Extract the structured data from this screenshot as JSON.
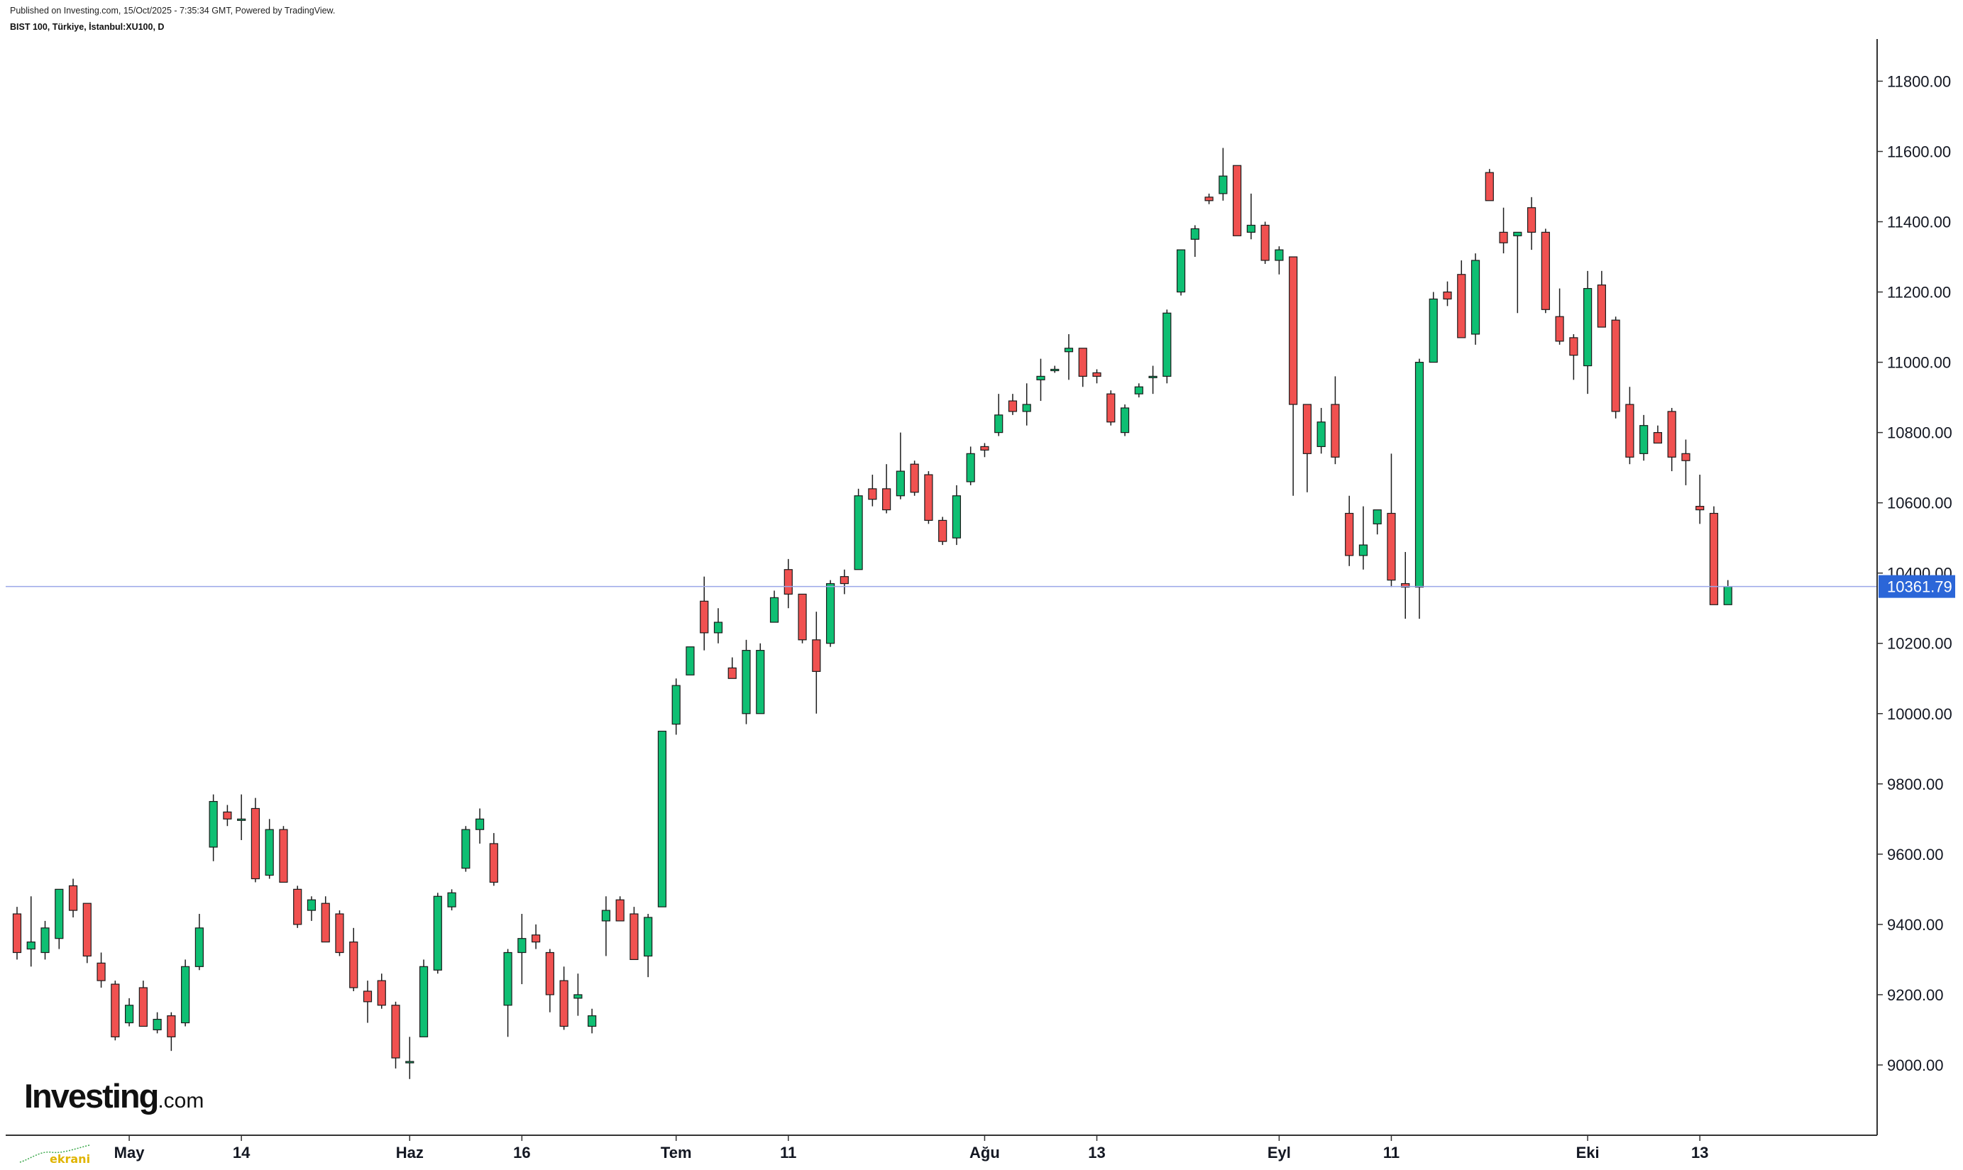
{
  "header": {
    "published": "Published on Investing.com, 15/Oct/2025 - 7:35:34 GMT, Powered by TradingView.",
    "symbol": "BIST 100, Türkiye, İstanbul:XU100, D"
  },
  "logo": {
    "brand": "Investing",
    "suffix": ".com"
  },
  "watermark": {
    "text": "ekrani"
  },
  "colors": {
    "up": "#0fbf73",
    "down": "#f05150",
    "outline": "#1b1b1b",
    "last_price_badge": "#2b66d8",
    "last_price_line": "#9aa6e8",
    "axis": "#333333"
  },
  "chart_data": {
    "type": "candlestick",
    "y_axis": {
      "min": 8800,
      "max": 11920,
      "position": "right",
      "ticks": [
        "9000.00",
        "9200.00",
        "9400.00",
        "9600.00",
        "9800.00",
        "10000.00",
        "10200.00",
        "10400.00",
        "10600.00",
        "10800.00",
        "11000.00",
        "11200.00",
        "11400.00",
        "11600.00",
        "11800.00"
      ]
    },
    "x_axis": {
      "labels": [
        {
          "text": "May",
          "index": 8
        },
        {
          "text": "14",
          "index": 16
        },
        {
          "text": "Haz",
          "index": 28
        },
        {
          "text": "16",
          "index": 36
        },
        {
          "text": "Tem",
          "index": 47
        },
        {
          "text": "11",
          "index": 55
        },
        {
          "text": "Ağu",
          "index": 69
        },
        {
          "text": "13",
          "index": 77
        },
        {
          "text": "Eyl",
          "index": 90
        },
        {
          "text": "11",
          "index": 98
        },
        {
          "text": "Eki",
          "index": 112
        },
        {
          "text": "13",
          "index": 120
        }
      ]
    },
    "last_price": 10361.79,
    "last_price_label": "10361.79",
    "candles": [
      [
        9430,
        9450,
        9300,
        9320
      ],
      [
        9330,
        9480,
        9280,
        9350
      ],
      [
        9320,
        9410,
        9300,
        9390
      ],
      [
        9360,
        9500,
        9330,
        9500
      ],
      [
        9510,
        9530,
        9420,
        9440
      ],
      [
        9460,
        9460,
        9290,
        9310
      ],
      [
        9290,
        9320,
        9220,
        9240
      ],
      [
        9230,
        9240,
        9070,
        9080
      ],
      [
        9120,
        9190,
        9110,
        9170
      ],
      [
        9220,
        9240,
        9110,
        9110
      ],
      [
        9100,
        9150,
        9090,
        9130
      ],
      [
        9140,
        9150,
        9040,
        9080
      ],
      [
        9120,
        9300,
        9110,
        9280
      ],
      [
        9280,
        9430,
        9270,
        9390
      ],
      [
        9620,
        9770,
        9580,
        9750
      ],
      [
        9720,
        9740,
        9680,
        9700
      ],
      [
        9700,
        9770,
        9640,
        9700
      ],
      [
        9730,
        9760,
        9520,
        9530
      ],
      [
        9540,
        9700,
        9530,
        9670
      ],
      [
        9670,
        9680,
        9520,
        9520
      ],
      [
        9500,
        9510,
        9390,
        9400
      ],
      [
        9440,
        9480,
        9410,
        9470
      ],
      [
        9460,
        9480,
        9350,
        9350
      ],
      [
        9430,
        9440,
        9310,
        9320
      ],
      [
        9350,
        9390,
        9210,
        9220
      ],
      [
        9210,
        9240,
        9120,
        9180
      ],
      [
        9240,
        9260,
        9160,
        9170
      ],
      [
        9170,
        9180,
        8990,
        9020
      ],
      [
        9010,
        9080,
        8960,
        9010
      ],
      [
        9080,
        9300,
        9080,
        9280
      ],
      [
        9270,
        9490,
        9260,
        9480
      ],
      [
        9450,
        9500,
        9440,
        9490
      ],
      [
        9560,
        9680,
        9550,
        9670
      ],
      [
        9670,
        9730,
        9630,
        9700
      ],
      [
        9630,
        9660,
        9510,
        9520
      ],
      [
        9170,
        9330,
        9080,
        9320
      ],
      [
        9320,
        9430,
        9230,
        9360
      ],
      [
        9370,
        9400,
        9330,
        9350
      ],
      [
        9320,
        9330,
        9150,
        9200
      ],
      [
        9240,
        9280,
        9100,
        9110
      ],
      [
        9190,
        9260,
        9140,
        9200
      ],
      [
        9110,
        9160,
        9090,
        9140
      ],
      [
        9410,
        9480,
        9310,
        9440
      ],
      [
        9470,
        9480,
        9410,
        9410
      ],
      [
        9430,
        9450,
        9300,
        9300
      ],
      [
        9310,
        9430,
        9250,
        9420
      ],
      [
        9450,
        9950,
        9450,
        9950
      ],
      [
        9970,
        10100,
        9940,
        10080
      ],
      [
        10110,
        10190,
        10110,
        10190
      ],
      [
        10320,
        10390,
        10180,
        10230
      ],
      [
        10230,
        10300,
        10200,
        10260
      ],
      [
        10130,
        10160,
        10100,
        10100
      ],
      [
        10000,
        10210,
        9970,
        10180
      ],
      [
        10000,
        10200,
        10000,
        10180
      ],
      [
        10260,
        10350,
        10260,
        10330
      ],
      [
        10410,
        10440,
        10300,
        10340
      ],
      [
        10340,
        10340,
        10200,
        10210
      ],
      [
        10210,
        10290,
        10000,
        10120
      ],
      [
        10200,
        10380,
        10190,
        10370
      ],
      [
        10390,
        10410,
        10340,
        10370
      ],
      [
        10410,
        10640,
        10410,
        10620
      ],
      [
        10640,
        10680,
        10590,
        10610
      ],
      [
        10640,
        10710,
        10570,
        10580
      ],
      [
        10620,
        10800,
        10610,
        10690
      ],
      [
        10710,
        10720,
        10620,
        10630
      ],
      [
        10680,
        10690,
        10540,
        10550
      ],
      [
        10550,
        10560,
        10480,
        10490
      ],
      [
        10500,
        10650,
        10480,
        10620
      ],
      [
        10660,
        10760,
        10650,
        10740
      ],
      [
        10760,
        10770,
        10730,
        10750
      ],
      [
        10800,
        10910,
        10790,
        10850
      ],
      [
        10890,
        10910,
        10850,
        10860
      ],
      [
        10860,
        10940,
        10820,
        10880
      ],
      [
        10950,
        11010,
        10890,
        10960
      ],
      [
        10980,
        10990,
        10970,
        10980
      ],
      [
        11030,
        11080,
        10950,
        11040
      ],
      [
        11040,
        11040,
        10930,
        10960
      ],
      [
        10970,
        10980,
        10940,
        10960
      ],
      [
        10910,
        10920,
        10820,
        10830
      ],
      [
        10800,
        10880,
        10790,
        10870
      ],
      [
        10910,
        10940,
        10900,
        10930
      ],
      [
        10960,
        10990,
        10910,
        10960
      ],
      [
        10960,
        11150,
        10940,
        11140
      ],
      [
        11200,
        11320,
        11190,
        11320
      ],
      [
        11350,
        11390,
        11300,
        11380
      ],
      [
        11470,
        11480,
        11450,
        11460
      ],
      [
        11480,
        11610,
        11460,
        11530
      ],
      [
        11560,
        11560,
        11370,
        11360
      ],
      [
        11370,
        11480,
        11350,
        11390
      ],
      [
        11390,
        11400,
        11280,
        11290
      ],
      [
        11290,
        11330,
        11250,
        11320
      ],
      [
        11300,
        11300,
        10620,
        10880
      ],
      [
        10880,
        10880,
        10630,
        10740
      ],
      [
        10760,
        10870,
        10740,
        10830
      ],
      [
        10880,
        10960,
        10710,
        10730
      ],
      [
        10570,
        10620,
        10420,
        10450
      ],
      [
        10450,
        10590,
        10410,
        10480
      ],
      [
        10540,
        10570,
        10510,
        10580
      ],
      [
        10570,
        10740,
        10360,
        10380
      ],
      [
        10370,
        10460,
        10270,
        10360
      ],
      [
        10360,
        11010,
        10270,
        11000
      ],
      [
        11000,
        11200,
        11010,
        11180
      ],
      [
        11200,
        11230,
        11160,
        11180
      ],
      [
        11250,
        11290,
        11080,
        11070
      ],
      [
        11080,
        11310,
        11050,
        11290
      ],
      [
        11540,
        11550,
        11460,
        11460
      ],
      [
        11370,
        11440,
        11310,
        11340
      ],
      [
        11360,
        11370,
        11140,
        11370
      ],
      [
        11440,
        11470,
        11320,
        11370
      ],
      [
        11370,
        11380,
        11140,
        11150
      ],
      [
        11130,
        11210,
        11050,
        11060
      ],
      [
        11070,
        11080,
        10950,
        11020
      ],
      [
        10990,
        11260,
        10910,
        11210
      ],
      [
        11220,
        11260,
        11120,
        11100
      ],
      [
        11120,
        11130,
        10840,
        10860
      ],
      [
        10880,
        10930,
        10710,
        10730
      ],
      [
        10740,
        10850,
        10720,
        10820
      ],
      [
        10800,
        10820,
        10770,
        10770
      ],
      [
        10860,
        10870,
        10690,
        10730
      ],
      [
        10740,
        10780,
        10650,
        10720
      ],
      [
        10590,
        10680,
        10540,
        10580
      ],
      [
        10570,
        10590,
        10310,
        10310
      ],
      [
        10310,
        10380,
        10310,
        10361.79
      ]
    ]
  }
}
